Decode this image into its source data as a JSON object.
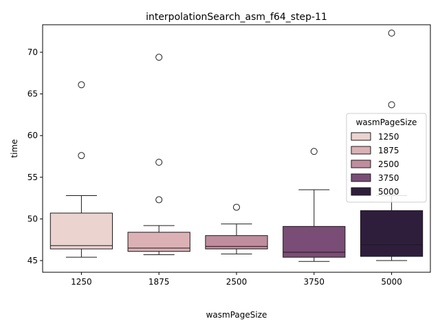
{
  "chart_data": {
    "type": "box",
    "title": "interpolationSearch_asm_f64_step-11",
    "xlabel": "wasmPageSize",
    "ylabel": "time",
    "categories": [
      "1250",
      "1875",
      "2500",
      "3750",
      "5000"
    ],
    "ylim": [
      43.6,
      73.3
    ],
    "yticks": [
      45,
      50,
      55,
      60,
      65,
      70
    ],
    "grid": false,
    "legend": {
      "title": "wasmPageSize",
      "placement": "right",
      "entries": [
        "1250",
        "1875",
        "2500",
        "3750",
        "5000"
      ]
    },
    "colors": [
      "#ebd3d0",
      "#dbb1b5",
      "#c08d9e",
      "#7a4d76",
      "#2e1e3c"
    ],
    "boxes": [
      {
        "category": "1250",
        "whisker_low": 45.4,
        "q1": 46.4,
        "median": 46.8,
        "q3": 50.7,
        "whisker_high": 52.8,
        "outliers": [
          57.6,
          66.1
        ]
      },
      {
        "category": "1875",
        "whisker_low": 45.7,
        "q1": 46.1,
        "median": 46.5,
        "q3": 48.4,
        "whisker_high": 49.2,
        "outliers": [
          52.3,
          56.8,
          69.4
        ]
      },
      {
        "category": "2500",
        "whisker_low": 45.8,
        "q1": 46.4,
        "median": 46.7,
        "q3": 48.0,
        "whisker_high": 49.4,
        "outliers": [
          51.4
        ]
      },
      {
        "category": "3750",
        "whisker_low": 44.9,
        "q1": 45.4,
        "median": 46.0,
        "q3": 49.1,
        "whisker_high": 53.5,
        "outliers": [
          58.1
        ]
      },
      {
        "category": "5000",
        "whisker_low": 45.0,
        "q1": 45.5,
        "median": 46.9,
        "q3": 51.0,
        "whisker_high": 52.8,
        "outliers": [
          63.7,
          72.3
        ]
      }
    ]
  }
}
